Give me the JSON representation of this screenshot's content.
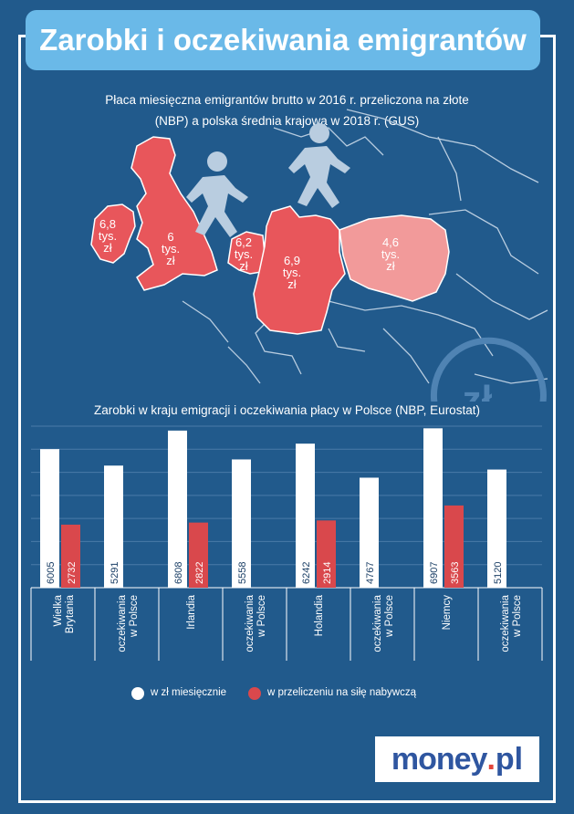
{
  "header": {
    "title": "Zarobki i oczekiwania emigrantów",
    "map_subtitle": "Płaca miesięczna emigrantów brutto w 2016 r. przeliczona na złote",
    "map_subtitle_2": "(NBP) a polska średnia krajowa w 2018 r. (GUS)"
  },
  "map": {
    "labels": [
      {
        "country": "Irlandia",
        "lines": [
          "6,8",
          "tys.",
          "zł"
        ]
      },
      {
        "country": "Wielka Brytania",
        "lines": [
          "6",
          "tys.",
          "zł"
        ]
      },
      {
        "country": "Holandia",
        "lines": [
          "6,2",
          "tys.",
          "zł"
        ]
      },
      {
        "country": "Niemcy",
        "lines": [
          "6,9",
          "tys.",
          "zł"
        ]
      },
      {
        "country": "Polska",
        "lines": [
          "4,6",
          "tys.",
          "zł"
        ]
      }
    ],
    "colors": {
      "emigration": "#e8565b",
      "poland": "#f29a9a",
      "map_lines": "#b9cde0"
    },
    "currency_icon": "zl-exchange-icon",
    "people_icon": "walking-person-icon"
  },
  "chart_data": {
    "type": "bar",
    "title": "Zarobki w kraju emigracji i oczekiwania płacy w Polsce (NBP, Eurostat)",
    "categories": [
      [
        "Wielka",
        "Brytania"
      ],
      [
        "oczekiwania",
        "w Polsce"
      ],
      [
        "Irlandia"
      ],
      [
        "oczekiwania",
        "w Polsce"
      ],
      [
        "Holandia"
      ],
      [
        "oczekiwania",
        "w Polsce"
      ],
      [
        "Niemcy"
      ],
      [
        "oczekiwania",
        "w Polsce"
      ]
    ],
    "series": [
      {
        "name": "w zł miesięcznie",
        "color": "#ffffff",
        "values": [
          6005,
          5291,
          6808,
          5558,
          6242,
          4767,
          6907,
          5120
        ]
      },
      {
        "name": "w przeliczeniu na siłę nabywczą",
        "color": "#d9484c",
        "values": [
          2732,
          null,
          2822,
          null,
          2914,
          null,
          3563,
          null
        ]
      }
    ],
    "ylim": [
      0,
      7000
    ],
    "grid": true,
    "legend": "bottom"
  },
  "brand": {
    "part1": "money",
    "part2": ".",
    "part3": "pl"
  }
}
